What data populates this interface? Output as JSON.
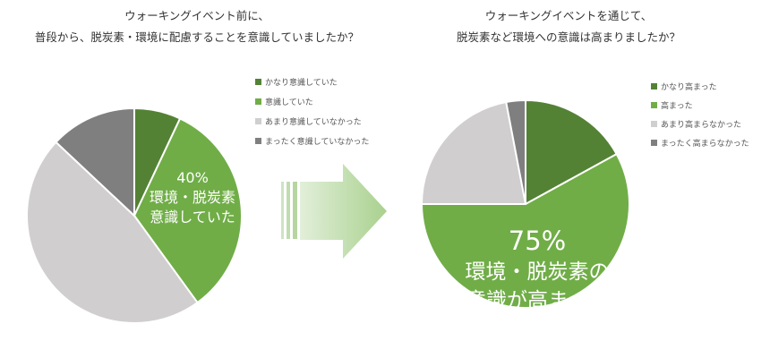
{
  "chart_data": [
    {
      "type": "pie",
      "title": "ウォーキングイベント前に、\n普段から、脱炭素・環境に配慮することを意識していましたか？",
      "categories": [
        "かなり意識していた",
        "意識していた",
        "あまり意識していなかった",
        "まったく意識していなかった"
      ],
      "values": [
        7,
        33,
        47,
        13
      ],
      "colors": [
        "#548235",
        "#70ad47",
        "#d0cece",
        "#7f7f7f"
      ],
      "annotation": {
        "percent": "40%",
        "line1": "環境・脱炭素",
        "line2": "意識していた"
      },
      "legend_position": "right"
    },
    {
      "type": "pie",
      "title": "ウォーキングイベントを通じて、\n脱炭素など環境への意識は高まりましたか？",
      "categories": [
        "かなり高まった",
        "高まった",
        "あまり高まらなかった",
        "まったく高まらなかった"
      ],
      "values": [
        17,
        58,
        22,
        3
      ],
      "colors": [
        "#548235",
        "#70ad47",
        "#d0cece",
        "#7f7f7f"
      ],
      "annotation": {
        "percent": "75%",
        "line1": "環境・脱炭素の",
        "line2": "意識が高まった"
      },
      "legend_position": "right"
    }
  ],
  "arrow": {
    "color_start": "#e2efda",
    "color_end": "#a9d18e"
  }
}
